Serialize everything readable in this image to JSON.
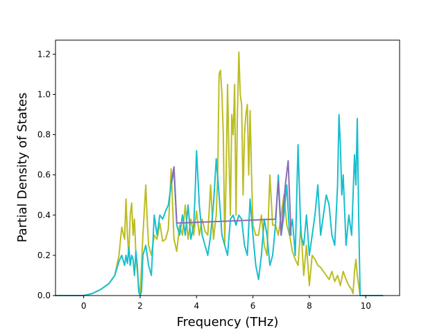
{
  "chart_data": {
    "type": "line",
    "title": "",
    "xlabel": "Frequency (THz)",
    "ylabel": "Partial Density of States",
    "xlim": [
      -1.0,
      11.2
    ],
    "ylim": [
      0.0,
      1.27
    ],
    "xticks": [
      0,
      2,
      4,
      6,
      8,
      10
    ],
    "yticks": [
      0.0,
      0.2,
      0.4,
      0.6,
      0.8,
      1.0,
      1.2
    ],
    "xtick_labels": [
      "0",
      "2",
      "4",
      "6",
      "8",
      "10"
    ],
    "ytick_labels": [
      "0.0",
      "0.2",
      "0.4",
      "0.6",
      "0.8",
      "1.0",
      "1.2"
    ],
    "grid": false,
    "legend": "none",
    "series": [
      {
        "color": "#bcbd22",
        "x": [
          -1.0,
          0.0,
          0.3,
          0.6,
          0.9,
          1.1,
          1.25,
          1.35,
          1.45,
          1.5,
          1.55,
          1.6,
          1.65,
          1.7,
          1.75,
          1.8,
          1.85,
          1.9,
          1.95,
          2.0,
          2.05,
          2.1,
          2.2,
          2.25,
          2.3,
          2.4,
          2.5,
          2.6,
          2.7,
          2.8,
          2.9,
          3.0,
          3.1,
          3.2,
          3.3,
          3.4,
          3.5,
          3.6,
          3.7,
          3.8,
          3.9,
          4.0,
          4.1,
          4.2,
          4.3,
          4.4,
          4.5,
          4.6,
          4.7,
          4.75,
          4.8,
          4.85,
          4.9,
          4.95,
          5.0,
          5.05,
          5.1,
          5.15,
          5.2,
          5.25,
          5.3,
          5.35,
          5.4,
          5.45,
          5.5,
          5.55,
          5.6,
          5.65,
          5.7,
          5.75,
          5.8,
          5.85,
          5.9,
          5.95,
          6.0,
          6.1,
          6.2,
          6.3,
          6.4,
          6.5,
          6.6,
          6.7,
          6.8,
          6.9,
          7.0,
          7.1,
          7.2,
          7.3,
          7.4,
          7.5,
          7.6,
          7.7,
          7.8,
          7.9,
          8.0,
          8.1,
          8.2,
          8.3,
          8.4,
          8.5,
          8.6,
          8.7,
          8.8,
          8.9,
          9.0,
          9.1,
          9.2,
          9.3,
          9.4,
          9.5,
          9.55,
          9.6,
          9.65,
          9.7,
          9.8,
          10.0,
          10.6
        ],
        "y": [
          0.0,
          0.0,
          0.01,
          0.03,
          0.06,
          0.1,
          0.2,
          0.34,
          0.28,
          0.48,
          0.3,
          0.2,
          0.4,
          0.46,
          0.3,
          0.38,
          0.2,
          0.12,
          0.05,
          0.0,
          0.15,
          0.3,
          0.55,
          0.38,
          0.25,
          0.2,
          0.3,
          0.28,
          0.36,
          0.27,
          0.28,
          0.33,
          0.63,
          0.28,
          0.22,
          0.35,
          0.3,
          0.45,
          0.28,
          0.38,
          0.3,
          0.42,
          0.3,
          0.38,
          0.32,
          0.3,
          0.55,
          0.28,
          0.4,
          0.6,
          1.1,
          1.12,
          1.0,
          0.8,
          0.25,
          0.6,
          1.05,
          0.7,
          0.4,
          0.9,
          0.8,
          1.05,
          0.4,
          0.9,
          1.21,
          1.0,
          0.95,
          0.5,
          0.8,
          0.9,
          0.95,
          0.6,
          0.92,
          0.6,
          0.35,
          0.3,
          0.3,
          0.4,
          0.25,
          0.2,
          0.6,
          0.35,
          0.35,
          0.3,
          0.4,
          0.5,
          0.35,
          0.3,
          0.22,
          0.18,
          0.15,
          0.35,
          0.1,
          0.25,
          0.05,
          0.2,
          0.18,
          0.15,
          0.14,
          0.12,
          0.1,
          0.08,
          0.12,
          0.07,
          0.1,
          0.05,
          0.12,
          0.08,
          0.05,
          0.03,
          0.01,
          0.12,
          0.18,
          0.1,
          0.0,
          0.0,
          0.0
        ]
      },
      {
        "color": "#17becf",
        "x": [
          -1.0,
          0.0,
          0.3,
          0.6,
          0.9,
          1.1,
          1.25,
          1.35,
          1.45,
          1.5,
          1.55,
          1.6,
          1.65,
          1.7,
          1.75,
          1.8,
          1.85,
          1.9,
          1.95,
          2.0,
          2.05,
          2.1,
          2.2,
          2.3,
          2.4,
          2.5,
          2.6,
          2.7,
          2.8,
          2.9,
          3.0,
          3.1,
          3.2,
          3.3,
          3.4,
          3.5,
          3.6,
          3.7,
          3.8,
          3.9,
          3.95,
          4.0,
          4.1,
          4.2,
          4.3,
          4.4,
          4.5,
          4.6,
          4.7,
          4.8,
          4.9,
          5.0,
          5.1,
          5.2,
          5.3,
          5.4,
          5.5,
          5.6,
          5.7,
          5.8,
          5.9,
          6.0,
          6.1,
          6.2,
          6.3,
          6.4,
          6.5,
          6.6,
          6.7,
          6.8,
          6.9,
          7.0,
          7.1,
          7.2,
          7.3,
          7.4,
          7.5,
          7.6,
          7.7,
          7.8,
          7.9,
          8.0,
          8.1,
          8.2,
          8.3,
          8.4,
          8.5,
          8.6,
          8.7,
          8.8,
          8.9,
          9.0,
          9.05,
          9.1,
          9.15,
          9.2,
          9.3,
          9.4,
          9.5,
          9.6,
          9.65,
          9.7,
          9.75,
          9.8,
          10.0,
          10.6
        ],
        "y": [
          0.0,
          0.0,
          0.01,
          0.03,
          0.06,
          0.1,
          0.17,
          0.2,
          0.15,
          0.2,
          0.16,
          0.24,
          0.15,
          0.2,
          0.18,
          0.1,
          0.22,
          0.15,
          0.02,
          0.0,
          0.02,
          0.2,
          0.25,
          0.15,
          0.1,
          0.4,
          0.3,
          0.4,
          0.38,
          0.42,
          0.45,
          0.55,
          0.62,
          0.35,
          0.3,
          0.4,
          0.3,
          0.45,
          0.28,
          0.35,
          0.5,
          0.72,
          0.45,
          0.3,
          0.25,
          0.2,
          0.3,
          0.45,
          0.68,
          0.5,
          0.3,
          0.25,
          0.2,
          0.38,
          0.4,
          0.35,
          0.4,
          0.38,
          0.25,
          0.2,
          0.48,
          0.3,
          0.15,
          0.08,
          0.2,
          0.38,
          0.3,
          0.15,
          0.2,
          0.35,
          0.6,
          0.3,
          0.4,
          0.55,
          0.3,
          0.38,
          0.2,
          0.75,
          0.3,
          0.25,
          0.4,
          0.2,
          0.3,
          0.4,
          0.55,
          0.3,
          0.4,
          0.5,
          0.45,
          0.3,
          0.25,
          0.55,
          0.9,
          0.75,
          0.5,
          0.6,
          0.25,
          0.4,
          0.3,
          0.7,
          0.55,
          0.88,
          0.4,
          0.0,
          0.0,
          0.0
        ]
      },
      {
        "color": "#8c6bb1",
        "x": [
          3.1,
          3.2,
          3.3,
          6.8,
          6.9,
          7.0,
          7.15,
          7.25,
          7.35
        ],
        "y": [
          0.56,
          0.64,
          0.36,
          0.38,
          0.57,
          0.3,
          0.55,
          0.67,
          0.3
        ]
      }
    ]
  }
}
